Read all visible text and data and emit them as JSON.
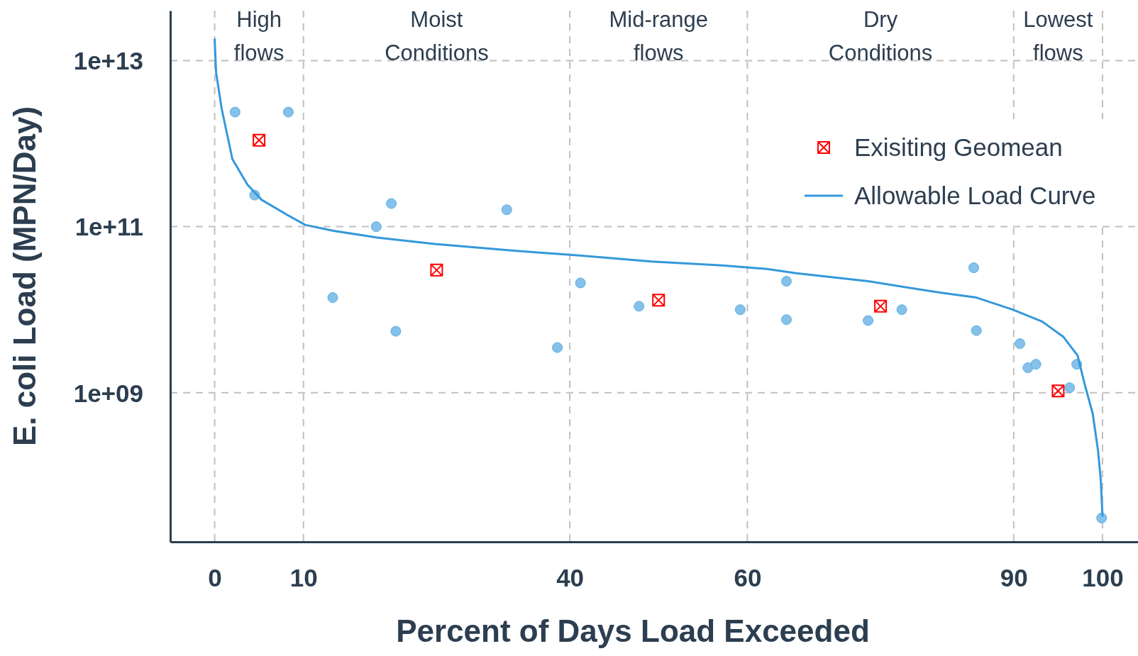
{
  "chart_data": {
    "type": "scatter",
    "xlabel": "Percent of Days Load Exceeded",
    "ylabel": "E. coli Load (MPN/Day)",
    "log": "y",
    "grid": true,
    "legend": "top right",
    "xlim": [
      -5,
      104
    ],
    "xticks": [
      0,
      10,
      40,
      60,
      90,
      100
    ],
    "ylim": [
      16000000.0,
      40000000000000.0
    ],
    "yticks": [
      {
        "value": 1000000000.0,
        "label": "1e+09"
      },
      {
        "value": 100000000000.0,
        "label": "1e+11"
      },
      {
        "value": 10000000000000.0,
        "label": "1e+13"
      }
    ],
    "annotations": [
      "High flows",
      "Moist Conditions",
      "Mid-range flows",
      "Dry Conditions",
      "Lowest flows"
    ],
    "series": [
      {
        "marker": "circle",
        "color": "#85c1e9",
        "x": [
          2.3,
          8.3,
          4.5,
          18.2,
          19.9,
          32.9,
          13.3,
          20.4,
          38.6,
          41.2,
          47.8,
          59.2,
          64.4,
          64.4,
          73.6,
          77.4,
          85.5,
          85.8,
          90.7,
          91.6,
          92.5,
          97.1,
          96.3,
          99.9
        ],
        "values": [
          2400000000000.0,
          2400000000000.0,
          240000000000.0,
          100000000000.0,
          190000000000.0,
          160000000000.0,
          14000000000.0,
          5500000000.0,
          3500000000.0,
          21000000000.0,
          11000000000.0,
          10000000000.0,
          22000000000.0,
          7600000000.0,
          7400000000.0,
          10000000000.0,
          32000000000.0,
          5600000000.0,
          3900000000.0,
          2000000000.0,
          2200000000.0,
          2200000000.0,
          1150000000.0,
          31000000.0
        ]
      },
      {
        "name": "Exisiting Geomean",
        "marker": "cross",
        "color": "#ff0000",
        "x": [
          5,
          25,
          50,
          75,
          95
        ],
        "values": [
          1100000000000.0,
          30000000000.0,
          13000000000.0,
          11000000000.0,
          1050000000.0
        ]
      },
      {
        "type": "line",
        "name": "Allowable Load Curve",
        "marker": "none",
        "line_style": "solid",
        "color": "#3498db",
        "x": [
          0,
          0.16,
          0.8,
          2,
          3.7,
          5.3,
          8.1,
          10.2,
          13.4,
          18.3,
          24.8,
          33,
          41.1,
          49.2,
          57.4,
          62.2,
          65.5,
          73.6,
          81.8,
          85.8,
          89.9,
          93.2,
          95.6,
          97.2,
          98,
          98.9,
          99.5,
          99.8,
          100
        ],
        "values": [
          18000000000000.0,
          7200000000000.0,
          2600000000000.0,
          650000000000.0,
          320000000000.0,
          210000000000.0,
          140000000000.0,
          105000000000.0,
          89000000000.0,
          74000000000.0,
          62000000000.0,
          52000000000.0,
          45000000000.0,
          38000000000.0,
          34000000000.0,
          31000000000.0,
          27500000000.0,
          22000000000.0,
          16000000000.0,
          14000000000.0,
          10000000000.0,
          7200000000.0,
          4700000000.0,
          2800000000.0,
          1260000000.0,
          560000000.0,
          200000000.0,
          91000000.0,
          33000000.0
        ]
      }
    ]
  }
}
